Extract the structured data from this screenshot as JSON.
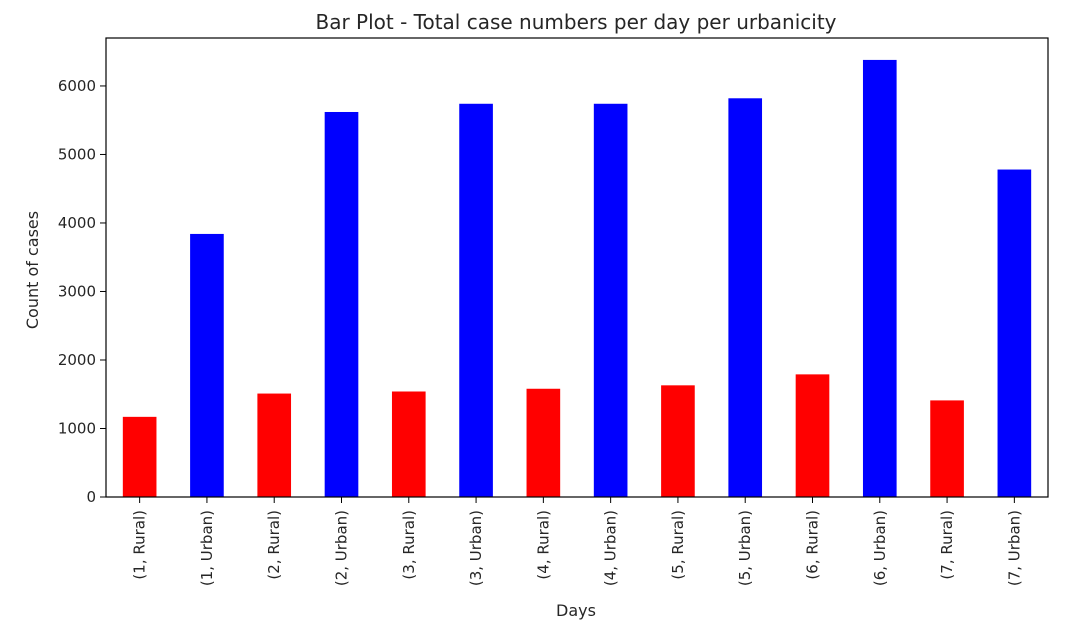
{
  "chart_data": {
    "type": "bar",
    "title": "Bar Plot - Total case numbers per day per urbanicity",
    "xlabel": "Days",
    "ylabel": "Count of cases",
    "categories": [
      "(1, Rural)",
      "(1, Urban)",
      "(2, Rural)",
      "(2, Urban)",
      "(3, Rural)",
      "(3, Urban)",
      "(4, Rural)",
      "(4, Urban)",
      "(5, Rural)",
      "(5, Urban)",
      "(6, Rural)",
      "(6, Urban)",
      "(7, Rural)",
      "(7, Urban)"
    ],
    "values": [
      1170,
      3840,
      1510,
      5620,
      1540,
      5740,
      1580,
      5740,
      1630,
      5820,
      1790,
      6380,
      1410,
      4780
    ],
    "bar_colors": [
      "#ff0000",
      "#0000ff",
      "#ff0000",
      "#0000ff",
      "#ff0000",
      "#0000ff",
      "#ff0000",
      "#0000ff",
      "#ff0000",
      "#0000ff",
      "#ff0000",
      "#0000ff",
      "#ff0000",
      "#0000ff"
    ],
    "ylim": [
      0,
      6700
    ],
    "yticks": [
      0,
      1000,
      2000,
      3000,
      4000,
      5000,
      6000
    ],
    "grid": false,
    "legend": false
  }
}
